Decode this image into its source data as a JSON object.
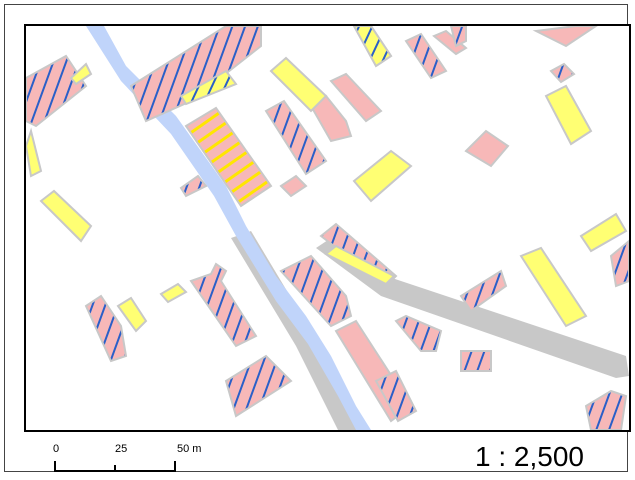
{
  "map": {
    "legend_colors": {
      "building": "#f7b8b8",
      "building_outline": "#c8c8c8",
      "highlight": "#ffff73",
      "hatch_blue": "#2a5fc8",
      "hatch_yellow": "#ffe600",
      "river": "#c0d4fa",
      "road": "#c8c8c8"
    }
  },
  "scale_bar": {
    "labels": [
      "0",
      "25",
      "50 m"
    ]
  },
  "scale_ratio": "1 : 2,500"
}
